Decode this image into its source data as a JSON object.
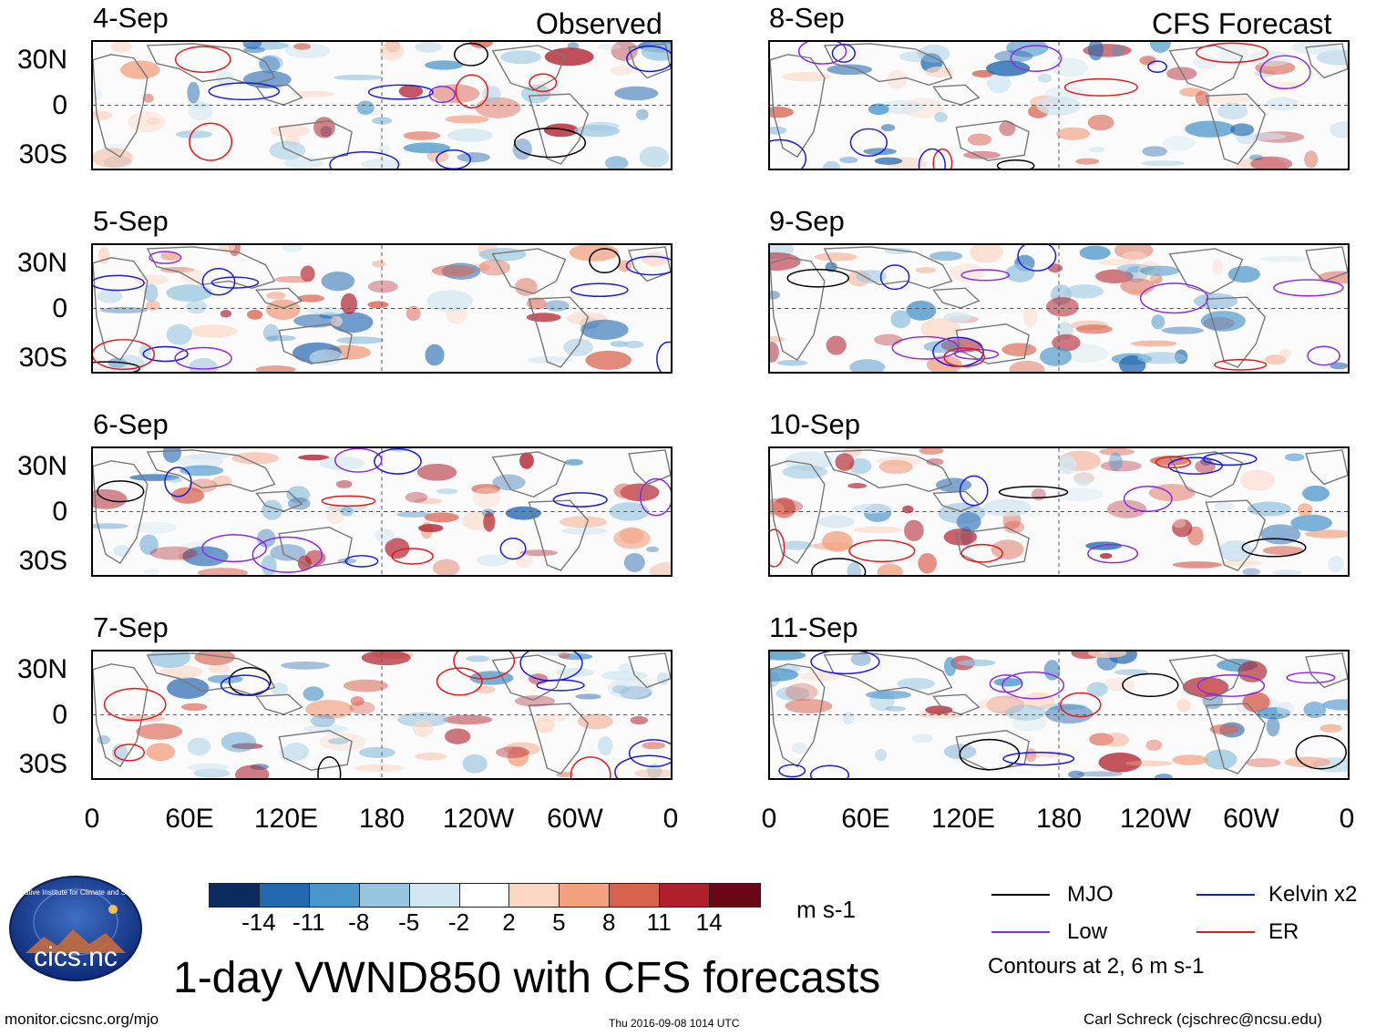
{
  "header": {
    "observed_label": "Observed",
    "forecast_label": "CFS Forecast"
  },
  "panels": {
    "observed": [
      "4-Sep",
      "5-Sep",
      "6-Sep",
      "7-Sep"
    ],
    "forecast": [
      "8-Sep",
      "9-Sep",
      "10-Sep",
      "11-Sep"
    ]
  },
  "axes": {
    "lat_labels": [
      "30N",
      "0",
      "30S"
    ],
    "lon_labels": [
      "0",
      "60E",
      "120E",
      "180",
      "120W",
      "60W",
      "0"
    ]
  },
  "colorbar": {
    "colors": [
      "#0b2a5e",
      "#2468b0",
      "#4a95c9",
      "#98c6e0",
      "#d2e6f1",
      "#ffffff",
      "#fbd6c3",
      "#f2a07f",
      "#d9624e",
      "#b01f2c",
      "#6a0716"
    ],
    "ticks": [
      "-14",
      "-11",
      "-8",
      "-5",
      "-2",
      "2",
      "5",
      "8",
      "11",
      "14"
    ],
    "units": "m s-1"
  },
  "legend": {
    "items": [
      {
        "label": "MJO",
        "color": "#000000"
      },
      {
        "label": "Kelvin x2",
        "color": "#1a1ad9"
      },
      {
        "label": "Low",
        "color": "#8a2be2"
      },
      {
        "label": "ER",
        "color": "#e31a1c"
      }
    ],
    "note": "Contours at 2, 6 m s-1"
  },
  "logo": {
    "text": "cics.nc",
    "ring_text": "Cooperative Institute for Climate and Satellites"
  },
  "footer": {
    "title": "1-day VWND850 with CFS forecasts",
    "url": "monitor.cicsnc.org/mjo",
    "timestamp": "Thu 2016-09-08 1014 UTC",
    "author": "Carl Schreck (cjschrec@ncsu.edu)"
  }
}
